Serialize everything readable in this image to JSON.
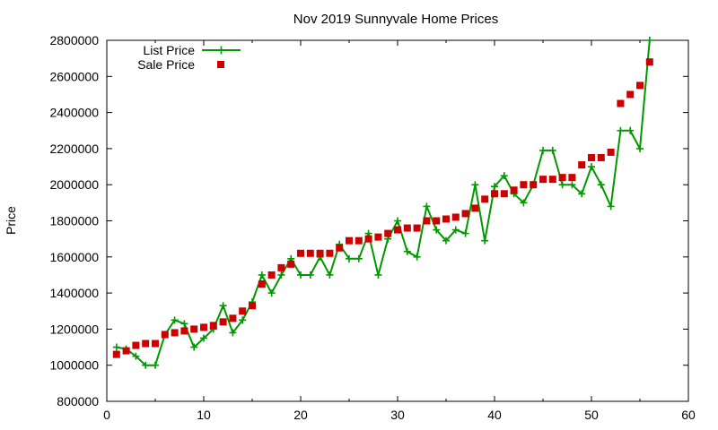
{
  "chart_data": {
    "type": "line",
    "title": "Nov 2019 Sunnyvale Home Prices",
    "xlabel": "",
    "ylabel": "Price",
    "xlim": [
      0,
      60
    ],
    "ylim": [
      800000,
      2800000
    ],
    "xticks": [
      "0",
      "10",
      "20",
      "30",
      "40",
      "50",
      "60"
    ],
    "yticks": [
      "800000",
      "1000000",
      "1200000",
      "1400000",
      "1600000",
      "1800000",
      "2000000",
      "2200000",
      "2400000",
      "2600000",
      "2800000"
    ],
    "grid": false,
    "legend_position": "top-left",
    "series": [
      {
        "name": "List Price",
        "style": "line-with-plus-markers",
        "color": "#009900",
        "x": [
          1,
          2,
          3,
          4,
          5,
          6,
          7,
          8,
          9,
          10,
          11,
          12,
          13,
          14,
          15,
          16,
          17,
          18,
          19,
          20,
          21,
          22,
          23,
          24,
          25,
          26,
          27,
          28,
          29,
          30,
          31,
          32,
          33,
          34,
          35,
          36,
          37,
          38,
          39,
          40,
          41,
          42,
          43,
          44,
          45,
          46,
          47,
          48,
          49,
          50,
          51,
          52,
          53,
          54,
          55,
          56
        ],
        "values": [
          1100000,
          1090000,
          1050000,
          1000000,
          1000000,
          1170000,
          1250000,
          1230000,
          1100000,
          1150000,
          1200000,
          1330000,
          1180000,
          1250000,
          1350000,
          1500000,
          1400000,
          1500000,
          1590000,
          1500000,
          1500000,
          1600000,
          1500000,
          1670000,
          1590000,
          1590000,
          1730000,
          1500000,
          1700000,
          1800000,
          1630000,
          1600000,
          1880000,
          1750000,
          1690000,
          1750000,
          1730000,
          2000000,
          1690000,
          1990000,
          2050000,
          1950000,
          1900000,
          2000000,
          2190000,
          2190000,
          2000000,
          2000000,
          1950000,
          2100000,
          2000000,
          1880000,
          2300000,
          2300000,
          2200000,
          2800000
        ]
      },
      {
        "name": "Sale Price",
        "style": "square-markers",
        "color": "#cc0000",
        "x": [
          1,
          2,
          3,
          4,
          5,
          6,
          7,
          8,
          9,
          10,
          11,
          12,
          13,
          14,
          15,
          16,
          17,
          18,
          19,
          20,
          21,
          22,
          23,
          24,
          25,
          26,
          27,
          28,
          29,
          30,
          31,
          32,
          33,
          34,
          35,
          36,
          37,
          38,
          39,
          40,
          41,
          42,
          43,
          44,
          45,
          46,
          47,
          48,
          49,
          50,
          51,
          52,
          53,
          54,
          55,
          56
        ],
        "values": [
          1060000,
          1080000,
          1110000,
          1120000,
          1120000,
          1170000,
          1180000,
          1190000,
          1200000,
          1210000,
          1220000,
          1240000,
          1260000,
          1300000,
          1330000,
          1450000,
          1500000,
          1540000,
          1560000,
          1620000,
          1620000,
          1620000,
          1620000,
          1650000,
          1690000,
          1690000,
          1700000,
          1710000,
          1730000,
          1750000,
          1760000,
          1760000,
          1800000,
          1800000,
          1810000,
          1820000,
          1840000,
          1870000,
          1920000,
          1950000,
          1950000,
          1970000,
          2000000,
          2000000,
          2030000,
          2030000,
          2040000,
          2040000,
          2110000,
          2150000,
          2150000,
          2180000,
          2450000,
          2500000,
          2550000,
          2680000
        ]
      }
    ]
  }
}
